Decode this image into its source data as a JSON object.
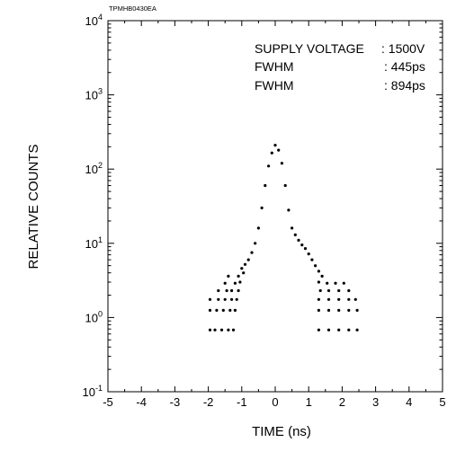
{
  "chart_data": {
    "type": "scatter",
    "figure_code": "TPMHB0430EA",
    "xlabel": "TIME (ns)",
    "ylabel": "RELATIVE COUNTS",
    "xlim": [
      -5,
      5
    ],
    "ylim": [
      0.1,
      10000
    ],
    "yscale": "log",
    "x_ticks": [
      "-5",
      "-4",
      "-3",
      "-2",
      "-1",
      "0",
      "1",
      "2",
      "3",
      "4",
      "5"
    ],
    "y_ticks": [
      {
        "base": "10",
        "exp": "-1"
      },
      {
        "base": "10",
        "exp": "0"
      },
      {
        "base": "10",
        "exp": "1"
      },
      {
        "base": "10",
        "exp": "2"
      },
      {
        "base": "10",
        "exp": "3"
      },
      {
        "base": "10",
        "exp": "4"
      }
    ],
    "annotations": [
      {
        "label": "SUPPLY VOLTAGE",
        "value": ": 1500V"
      },
      {
        "label": "FWHM",
        "value": ": 445ps"
      },
      {
        "label": "FWHM",
        "value": ": 894ps"
      }
    ],
    "peak": {
      "x": 0.0,
      "y": 210
    },
    "points": [
      [
        -1.95,
        0.68
      ],
      [
        -1.8,
        0.68
      ],
      [
        -1.6,
        0.68
      ],
      [
        -1.4,
        0.68
      ],
      [
        -1.25,
        0.68
      ],
      [
        -1.95,
        1.25
      ],
      [
        -1.75,
        1.25
      ],
      [
        -1.55,
        1.25
      ],
      [
        -1.35,
        1.25
      ],
      [
        -1.2,
        1.25
      ],
      [
        -1.95,
        1.75
      ],
      [
        -1.7,
        1.75
      ],
      [
        -1.5,
        1.75
      ],
      [
        -1.3,
        1.75
      ],
      [
        -1.15,
        1.75
      ],
      [
        -1.7,
        2.3
      ],
      [
        -1.45,
        2.3
      ],
      [
        -1.3,
        2.3
      ],
      [
        -1.1,
        2.3
      ],
      [
        -1.5,
        2.9
      ],
      [
        -1.2,
        2.9
      ],
      [
        -1.05,
        3.0
      ],
      [
        -1.4,
        3.6
      ],
      [
        -1.1,
        3.6
      ],
      [
        -0.95,
        4.0
      ],
      [
        -1.0,
        4.6
      ],
      [
        -0.9,
        5.2
      ],
      [
        -0.8,
        6.0
      ],
      [
        -0.7,
        7.5
      ],
      [
        -0.6,
        10
      ],
      [
        -0.5,
        16
      ],
      [
        -0.4,
        30
      ],
      [
        -0.3,
        60
      ],
      [
        -0.2,
        110
      ],
      [
        -0.1,
        165
      ],
      [
        0.0,
        210
      ],
      [
        0.1,
        180
      ],
      [
        0.2,
        120
      ],
      [
        0.3,
        60
      ],
      [
        0.4,
        28
      ],
      [
        0.5,
        16
      ],
      [
        0.6,
        13
      ],
      [
        0.7,
        11
      ],
      [
        0.8,
        9.5
      ],
      [
        0.9,
        8.5
      ],
      [
        1.0,
        7.2
      ],
      [
        1.1,
        6.0
      ],
      [
        1.2,
        5.0
      ],
      [
        1.3,
        4.2
      ],
      [
        1.4,
        3.6
      ],
      [
        1.3,
        3.0
      ],
      [
        1.55,
        2.9
      ],
      [
        1.8,
        2.9
      ],
      [
        2.05,
        2.9
      ],
      [
        1.35,
        2.3
      ],
      [
        1.6,
        2.3
      ],
      [
        1.9,
        2.3
      ],
      [
        2.2,
        2.3
      ],
      [
        1.3,
        1.75
      ],
      [
        1.6,
        1.75
      ],
      [
        1.9,
        1.75
      ],
      [
        2.2,
        1.75
      ],
      [
        2.4,
        1.75
      ],
      [
        1.3,
        1.25
      ],
      [
        1.6,
        1.25
      ],
      [
        1.9,
        1.25
      ],
      [
        2.2,
        1.25
      ],
      [
        2.45,
        1.25
      ],
      [
        1.3,
        0.68
      ],
      [
        1.6,
        0.68
      ],
      [
        1.9,
        0.68
      ],
      [
        2.2,
        0.68
      ],
      [
        2.45,
        0.68
      ]
    ]
  }
}
